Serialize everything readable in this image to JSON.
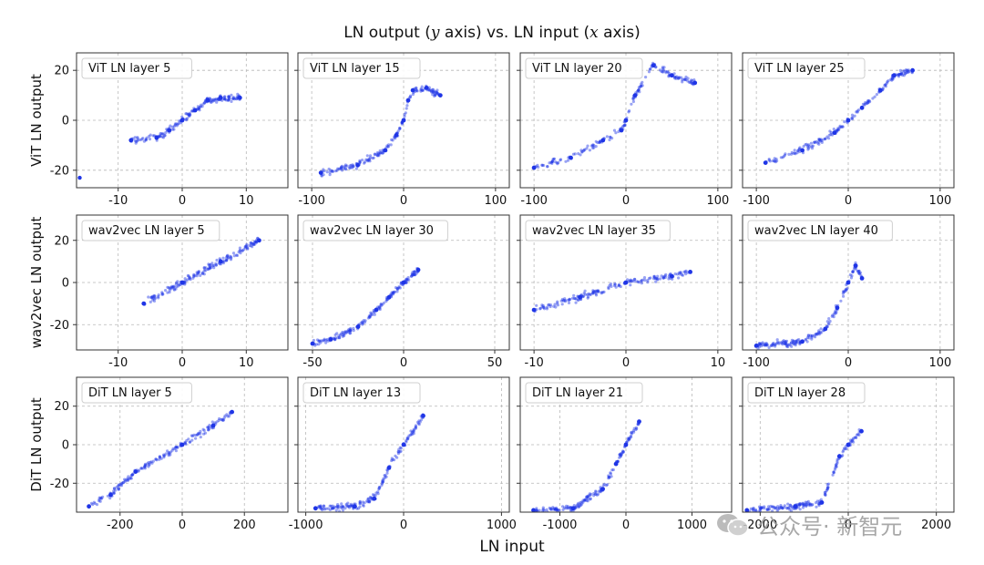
{
  "figure": {
    "title_parts": [
      "LN output (",
      "y",
      " axis) vs. LN input (",
      "x",
      " axis)"
    ],
    "xlabel": "LN input",
    "watermark": "公众号· 新智元"
  },
  "colors": {
    "points": "#1f35e6",
    "grid": "#b8b8b8",
    "frame": "#333333"
  },
  "chart_data": [
    {
      "type": "scatter",
      "row": "ViT",
      "ylabel": "ViT LN output",
      "label": "ViT LN layer 5",
      "xlim": [
        -16.5,
        16.5
      ],
      "ylim": [
        -27,
        27
      ],
      "xticks": [
        -10,
        0,
        10
      ],
      "yticks": [
        -20,
        0,
        20
      ],
      "trend": [
        [
          -8,
          -8
        ],
        [
          -4,
          -7
        ],
        [
          -2,
          -4
        ],
        [
          0,
          0
        ],
        [
          2,
          4
        ],
        [
          4,
          8
        ],
        [
          6,
          9
        ],
        [
          9,
          9
        ]
      ],
      "outlier": [
        -16,
        -23
      ]
    },
    {
      "type": "scatter",
      "row": "ViT",
      "label": "ViT LN layer 15",
      "xlim": [
        -115,
        115
      ],
      "ylim": [
        -27,
        27
      ],
      "xticks": [
        -100,
        0,
        100
      ],
      "yticks": [
        -20,
        0,
        20
      ],
      "trend": [
        [
          -90,
          -21
        ],
        [
          -50,
          -18
        ],
        [
          -20,
          -12
        ],
        [
          -8,
          -6
        ],
        [
          0,
          0
        ],
        [
          5,
          8
        ],
        [
          10,
          12
        ],
        [
          25,
          13
        ],
        [
          40,
          10
        ]
      ]
    },
    {
      "type": "scatter",
      "row": "ViT",
      "label": "ViT LN layer 20",
      "xlim": [
        -115,
        115
      ],
      "ylim": [
        -27,
        27
      ],
      "xticks": [
        -100,
        0,
        100
      ],
      "yticks": [
        -20,
        0,
        20
      ],
      "trend": [
        [
          -100,
          -19
        ],
        [
          -60,
          -15
        ],
        [
          -25,
          -8
        ],
        [
          -5,
          -4
        ],
        [
          0,
          0
        ],
        [
          10,
          10
        ],
        [
          30,
          22
        ],
        [
          50,
          18
        ],
        [
          75,
          15
        ]
      ]
    },
    {
      "type": "scatter",
      "row": "ViT",
      "label": "ViT LN layer 25",
      "xlim": [
        -115,
        115
      ],
      "ylim": [
        -27,
        27
      ],
      "xticks": [
        -100,
        0,
        100
      ],
      "yticks": [
        -20,
        0,
        20
      ],
      "trend": [
        [
          -90,
          -17
        ],
        [
          -50,
          -12
        ],
        [
          -15,
          -5
        ],
        [
          0,
          0
        ],
        [
          15,
          5
        ],
        [
          35,
          12
        ],
        [
          50,
          18
        ],
        [
          70,
          20
        ]
      ]
    },
    {
      "type": "scatter",
      "row": "wav2vec",
      "ylabel": "wav2vec LN output",
      "label": "wav2vec LN layer 5",
      "xlim": [
        -16.5,
        16.5
      ],
      "ylim": [
        -32,
        32
      ],
      "xticks": [
        -10,
        0,
        10
      ],
      "yticks": [
        -20,
        0,
        20
      ],
      "trend": [
        [
          -6,
          -10
        ],
        [
          0,
          0
        ],
        [
          6,
          10
        ],
        [
          12,
          20
        ]
      ]
    },
    {
      "type": "scatter",
      "row": "wav2vec",
      "label": "wav2vec LN layer 30",
      "xlim": [
        -58,
        58
      ],
      "ylim": [
        -32,
        32
      ],
      "xticks": [
        -50,
        0,
        50
      ],
      "yticks": [
        -20,
        0,
        20
      ],
      "trend": [
        [
          -50,
          -29
        ],
        [
          -40,
          -27
        ],
        [
          -25,
          -21
        ],
        [
          -15,
          -13
        ],
        [
          -8,
          -7
        ],
        [
          0,
          0
        ],
        [
          8,
          6
        ]
      ]
    },
    {
      "type": "scatter",
      "row": "wav2vec",
      "label": "wav2vec LN layer 35",
      "xlim": [
        -11.5,
        11.5
      ],
      "ylim": [
        -32,
        32
      ],
      "xticks": [
        -10,
        0,
        10
      ],
      "yticks": [
        -20,
        0,
        20
      ],
      "trend": [
        [
          -10,
          -13
        ],
        [
          -5,
          -7
        ],
        [
          0,
          0
        ],
        [
          5,
          3
        ],
        [
          7,
          5
        ]
      ]
    },
    {
      "type": "scatter",
      "row": "wav2vec",
      "label": "wav2vec LN layer 40",
      "xlim": [
        -115,
        115
      ],
      "ylim": [
        -32,
        32
      ],
      "xticks": [
        -100,
        0,
        100
      ],
      "yticks": [
        -20,
        0,
        20
      ],
      "trend": [
        [
          -100,
          -30
        ],
        [
          -50,
          -28
        ],
        [
          -25,
          -22
        ],
        [
          -12,
          -12
        ],
        [
          0,
          0
        ],
        [
          8,
          8
        ],
        [
          15,
          2
        ]
      ]
    },
    {
      "type": "scatter",
      "row": "DiT",
      "ylabel": "DiT LN output",
      "label": "DiT LN layer 5",
      "xlim": [
        -340,
        340
      ],
      "ylim": [
        -35,
        35
      ],
      "xticks": [
        -200,
        0,
        200
      ],
      "yticks": [
        -20,
        0,
        20
      ],
      "trend": [
        [
          -300,
          -32
        ],
        [
          -230,
          -26
        ],
        [
          -150,
          -14
        ],
        [
          0,
          0
        ],
        [
          100,
          10
        ],
        [
          160,
          17
        ]
      ]
    },
    {
      "type": "scatter",
      "row": "DiT",
      "label": "DiT LN layer 13",
      "xlim": [
        -1080,
        1080
      ],
      "ylim": [
        -35,
        35
      ],
      "xticks": [
        -1000,
        0,
        1000
      ],
      "yticks": [
        -20,
        0,
        20
      ],
      "trend": [
        [
          -900,
          -33
        ],
        [
          -500,
          -32
        ],
        [
          -300,
          -28
        ],
        [
          -150,
          -12
        ],
        [
          0,
          0
        ],
        [
          200,
          15
        ]
      ]
    },
    {
      "type": "scatter",
      "row": "DiT",
      "label": "DiT LN layer 21",
      "xlim": [
        -1600,
        1600
      ],
      "ylim": [
        -35,
        35
      ],
      "xticks": [
        -1000,
        0,
        1000
      ],
      "yticks": [
        -20,
        0,
        20
      ],
      "trend": [
        [
          -1400,
          -34
        ],
        [
          -800,
          -33
        ],
        [
          -350,
          -23
        ],
        [
          -150,
          -10
        ],
        [
          0,
          0
        ],
        [
          200,
          12
        ]
      ]
    },
    {
      "type": "scatter",
      "row": "DiT",
      "label": "DiT LN layer 28",
      "xlim": [
        -2400,
        2400
      ],
      "ylim": [
        -35,
        35
      ],
      "xticks": [
        -2000,
        0,
        2000
      ],
      "yticks": [
        -20,
        0,
        20
      ],
      "trend": [
        [
          -2300,
          -34
        ],
        [
          -1200,
          -32
        ],
        [
          -600,
          -30
        ],
        [
          -200,
          -6
        ],
        [
          0,
          0
        ],
        [
          300,
          7
        ]
      ]
    }
  ]
}
